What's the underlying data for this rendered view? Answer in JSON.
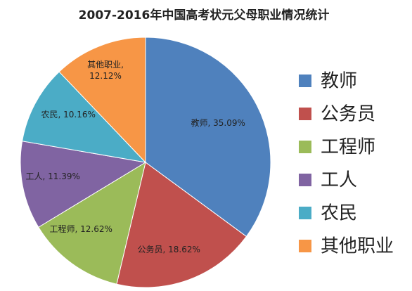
{
  "chart_data": {
    "type": "pie",
    "title": "2007-2016年中国高考状元父母职业情况统计",
    "categories": [
      "教师",
      "公务员",
      "工程师",
      "工人",
      "农民",
      "其他职业"
    ],
    "values": [
      35.09,
      18.62,
      12.62,
      11.39,
      10.16,
      12.12
    ],
    "value_labels": [
      "教师, 35.09%",
      "公务员, 18.62%",
      "工程师, 12.62%",
      "工人, 11.39%",
      "农民, 10.16%",
      "其他职业, 12.12%"
    ],
    "colors": [
      "#4f81bd",
      "#c0504d",
      "#9bbb59",
      "#8064a2",
      "#4bacc6",
      "#f79646"
    ],
    "legend": "right"
  }
}
